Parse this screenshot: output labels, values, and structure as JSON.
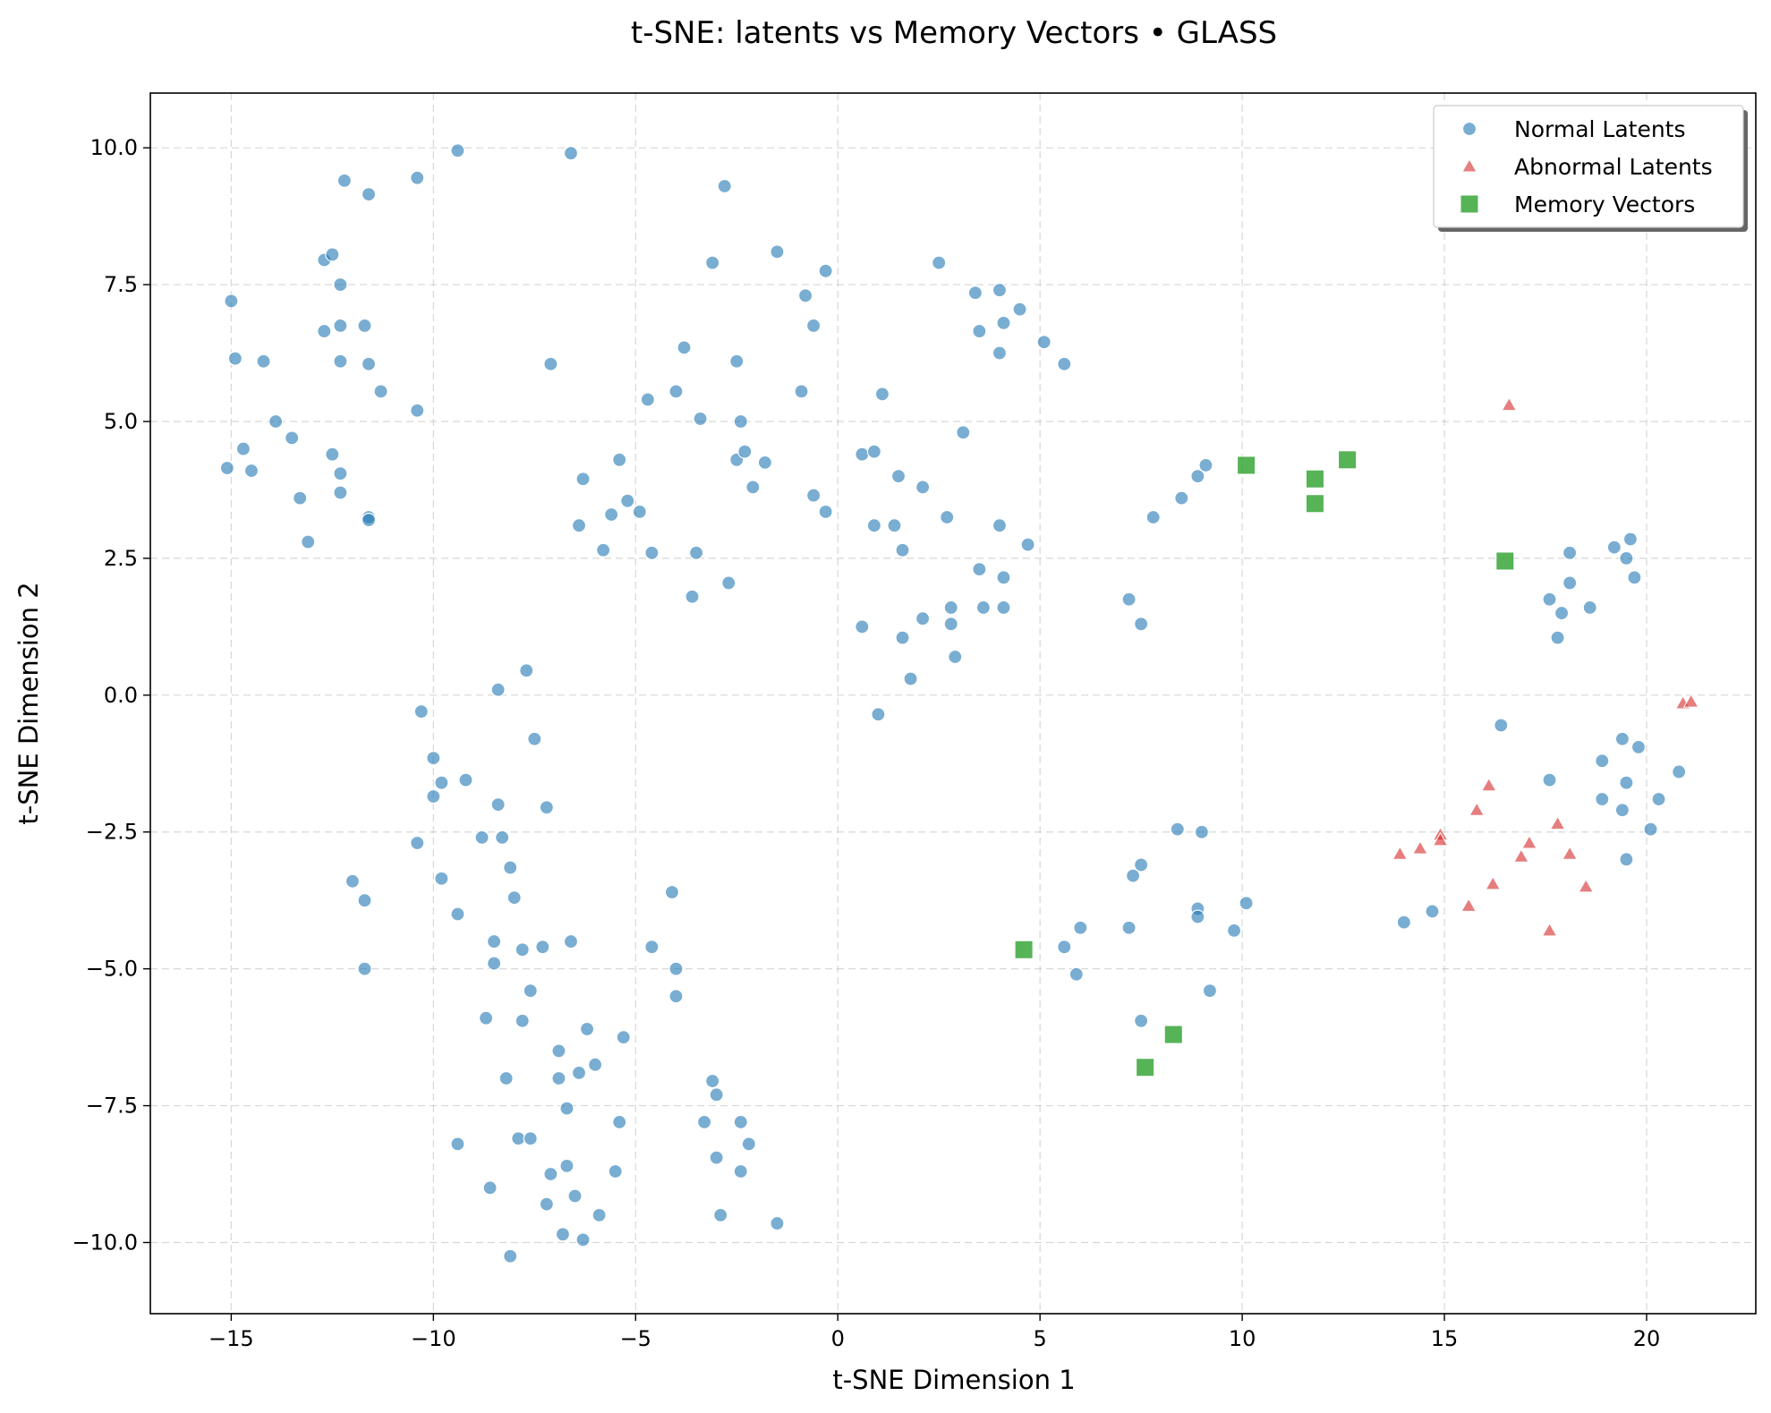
{
  "chart_data": {
    "type": "scatter",
    "title": "t-SNE: latents vs Memory Vectors • GLASS",
    "xlabel": "t-SNE Dimension 1",
    "ylabel": "t-SNE Dimension 2",
    "xlim": [
      -17,
      22.7
    ],
    "ylim": [
      -11.3,
      11
    ],
    "xticks": [
      -15,
      -10,
      -5,
      0,
      5,
      10,
      15,
      20
    ],
    "xtick_labels": [
      "−15",
      "−10",
      "−5",
      "0",
      "5",
      "10",
      "15",
      "20"
    ],
    "yticks": [
      10,
      7.5,
      5,
      2.5,
      0,
      -2.5,
      -5,
      -7.5,
      -10
    ],
    "ytick_labels": [
      "10.0",
      "7.5",
      "5.0",
      "2.5",
      "0.0",
      "−2.5",
      "−5.0",
      "−7.5",
      "−10.0"
    ],
    "grid": true,
    "legend_position": "top-right",
    "series": [
      {
        "name": "Normal Latents",
        "marker": "circle",
        "color": "#1f77b4",
        "points": [
          [
            -15.0,
            7.2
          ],
          [
            -14.9,
            6.15
          ],
          [
            -14.7,
            4.5
          ],
          [
            -15.1,
            4.15
          ],
          [
            -14.5,
            4.1
          ],
          [
            -14.2,
            6.1
          ],
          [
            -13.9,
            5.0
          ],
          [
            -13.5,
            4.7
          ],
          [
            -13.3,
            3.6
          ],
          [
            -13.1,
            2.8
          ],
          [
            -12.7,
            6.65
          ],
          [
            -12.7,
            7.95
          ],
          [
            -12.2,
            9.4
          ],
          [
            -12.5,
            8.05
          ],
          [
            -12.3,
            7.5
          ],
          [
            -12.3,
            6.75
          ],
          [
            -12.3,
            6.1
          ],
          [
            -12.5,
            4.4
          ],
          [
            -12.3,
            4.05
          ],
          [
            -12.3,
            3.7
          ],
          [
            -11.7,
            6.75
          ],
          [
            -11.6,
            6.05
          ],
          [
            -11.3,
            5.55
          ],
          [
            -11.6,
            9.15
          ],
          [
            -11.6,
            3.25
          ],
          [
            -11.6,
            3.2
          ],
          [
            -10.4,
            9.45
          ],
          [
            -10.4,
            5.2
          ],
          [
            -9.4,
            9.95
          ],
          [
            -6.6,
            9.9
          ],
          [
            -7.1,
            6.05
          ],
          [
            -2.8,
            9.3
          ],
          [
            -3.1,
            7.9
          ],
          [
            -3.8,
            6.35
          ],
          [
            -4.0,
            5.55
          ],
          [
            -4.7,
            5.4
          ],
          [
            -3.4,
            5.05
          ],
          [
            -2.5,
            6.1
          ],
          [
            -2.4,
            5.0
          ],
          [
            -2.5,
            4.3
          ],
          [
            -2.3,
            4.45
          ],
          [
            -1.8,
            4.25
          ],
          [
            -2.1,
            3.8
          ],
          [
            -5.4,
            4.3
          ],
          [
            -6.3,
            3.95
          ],
          [
            -5.2,
            3.55
          ],
          [
            -5.6,
            3.3
          ],
          [
            -4.9,
            3.35
          ],
          [
            -6.4,
            3.1
          ],
          [
            -5.8,
            2.65
          ],
          [
            -4.6,
            2.6
          ],
          [
            -3.5,
            2.6
          ],
          [
            -3.6,
            1.8
          ],
          [
            -2.7,
            2.05
          ],
          [
            -1.5,
            8.1
          ],
          [
            -0.3,
            7.75
          ],
          [
            -0.8,
            7.3
          ],
          [
            -0.6,
            6.75
          ],
          [
            -0.9,
            5.55
          ],
          [
            -0.6,
            3.65
          ],
          [
            -0.3,
            3.35
          ],
          [
            1.1,
            5.5
          ],
          [
            0.6,
            4.4
          ],
          [
            0.9,
            4.45
          ],
          [
            1.5,
            4.0
          ],
          [
            2.1,
            3.8
          ],
          [
            0.9,
            3.1
          ],
          [
            1.4,
            3.1
          ],
          [
            1.6,
            2.65
          ],
          [
            2.7,
            3.25
          ],
          [
            2.5,
            7.9
          ],
          [
            3.4,
            7.35
          ],
          [
            4.0,
            7.4
          ],
          [
            4.5,
            7.05
          ],
          [
            3.5,
            6.65
          ],
          [
            4.1,
            6.8
          ],
          [
            5.1,
            6.45
          ],
          [
            4.0,
            6.25
          ],
          [
            5.6,
            6.05
          ],
          [
            3.1,
            4.8
          ],
          [
            4.0,
            3.1
          ],
          [
            4.7,
            2.75
          ],
          [
            3.5,
            2.3
          ],
          [
            4.1,
            2.15
          ],
          [
            2.8,
            1.6
          ],
          [
            3.6,
            1.6
          ],
          [
            4.1,
            1.6
          ],
          [
            2.1,
            1.4
          ],
          [
            2.8,
            1.3
          ],
          [
            0.6,
            1.25
          ],
          [
            1.6,
            1.05
          ],
          [
            2.9,
            0.7
          ],
          [
            1.8,
            0.3
          ],
          [
            1.0,
            -0.35
          ],
          [
            7.2,
            1.75
          ],
          [
            7.5,
            1.3
          ],
          [
            7.8,
            3.25
          ],
          [
            8.5,
            3.6
          ],
          [
            8.9,
            4.0
          ],
          [
            9.1,
            4.2
          ],
          [
            -8.4,
            0.1
          ],
          [
            -7.7,
            0.45
          ],
          [
            -10.3,
            -0.3
          ],
          [
            -10.0,
            -1.15
          ],
          [
            -7.5,
            -0.8
          ],
          [
            -9.8,
            -1.6
          ],
          [
            -9.2,
            -1.55
          ],
          [
            -10.0,
            -1.85
          ],
          [
            -8.4,
            -2.0
          ],
          [
            -7.2,
            -2.05
          ],
          [
            -10.4,
            -2.7
          ],
          [
            -8.8,
            -2.6
          ],
          [
            -8.3,
            -2.6
          ],
          [
            -9.8,
            -3.35
          ],
          [
            -8.1,
            -3.15
          ],
          [
            -8.0,
            -3.7
          ],
          [
            -9.4,
            -4.0
          ],
          [
            -8.5,
            -4.5
          ],
          [
            -7.8,
            -4.65
          ],
          [
            -7.3,
            -4.6
          ],
          [
            -6.6,
            -4.5
          ],
          [
            -8.5,
            -4.9
          ],
          [
            -7.6,
            -5.4
          ],
          [
            -8.7,
            -5.9
          ],
          [
            -7.8,
            -5.95
          ],
          [
            -6.2,
            -6.1
          ],
          [
            -6.9,
            -6.5
          ],
          [
            -6.0,
            -6.75
          ],
          [
            -6.4,
            -6.9
          ],
          [
            -6.9,
            -7.0
          ],
          [
            -8.2,
            -7.0
          ],
          [
            -6.7,
            -7.55
          ],
          [
            -5.4,
            -7.8
          ],
          [
            -7.9,
            -8.1
          ],
          [
            -7.6,
            -8.1
          ],
          [
            -9.4,
            -8.2
          ],
          [
            -6.7,
            -8.6
          ],
          [
            -7.1,
            -8.75
          ],
          [
            -5.5,
            -8.7
          ],
          [
            -8.6,
            -9.0
          ],
          [
            -6.5,
            -9.15
          ],
          [
            -7.2,
            -9.3
          ],
          [
            -5.9,
            -9.5
          ],
          [
            -6.8,
            -9.85
          ],
          [
            -6.3,
            -9.95
          ],
          [
            -8.1,
            -10.25
          ],
          [
            -12.0,
            -3.4
          ],
          [
            -11.7,
            -3.75
          ],
          [
            -11.7,
            -5.0
          ],
          [
            -4.1,
            -3.6
          ],
          [
            -4.6,
            -4.6
          ],
          [
            -4.0,
            -5.0
          ],
          [
            -4.0,
            -5.5
          ],
          [
            -5.3,
            -6.25
          ],
          [
            -3.1,
            -7.05
          ],
          [
            -3.0,
            -7.3
          ],
          [
            -3.3,
            -7.8
          ],
          [
            -2.4,
            -7.8
          ],
          [
            -2.2,
            -8.2
          ],
          [
            -3.0,
            -8.45
          ],
          [
            -2.4,
            -8.7
          ],
          [
            -2.9,
            -9.5
          ],
          [
            -1.5,
            -9.65
          ],
          [
            8.4,
            -2.45
          ],
          [
            9.0,
            -2.5
          ],
          [
            7.5,
            -3.1
          ],
          [
            7.3,
            -3.3
          ],
          [
            8.9,
            -3.9
          ],
          [
            10.1,
            -3.8
          ],
          [
            8.9,
            -4.05
          ],
          [
            9.8,
            -4.3
          ],
          [
            7.2,
            -4.25
          ],
          [
            6.0,
            -4.25
          ],
          [
            5.6,
            -4.6
          ],
          [
            5.9,
            -5.1
          ],
          [
            9.2,
            -5.4
          ],
          [
            7.5,
            -5.95
          ],
          [
            14.0,
            -4.15
          ],
          [
            14.7,
            -3.95
          ],
          [
            16.4,
            -0.55
          ],
          [
            17.6,
            1.75
          ],
          [
            18.1,
            2.6
          ],
          [
            19.2,
            2.7
          ],
          [
            19.6,
            2.85
          ],
          [
            19.5,
            2.5
          ],
          [
            18.1,
            2.05
          ],
          [
            18.6,
            1.6
          ],
          [
            19.7,
            2.15
          ],
          [
            17.9,
            1.5
          ],
          [
            17.8,
            1.05
          ],
          [
            20.8,
            -1.4
          ],
          [
            19.8,
            -0.95
          ],
          [
            19.4,
            -0.8
          ],
          [
            18.9,
            -1.2
          ],
          [
            17.6,
            -1.55
          ],
          [
            19.5,
            -1.6
          ],
          [
            20.3,
            -1.9
          ],
          [
            18.9,
            -1.9
          ],
          [
            19.4,
            -2.1
          ],
          [
            20.1,
            -2.45
          ],
          [
            19.5,
            -3.0
          ]
        ]
      },
      {
        "name": "Abnormal Latents",
        "marker": "triangle",
        "color": "#d62728",
        "points": [
          [
            16.6,
            5.3
          ],
          [
            20.9,
            -0.15
          ],
          [
            21.1,
            -0.12
          ],
          [
            16.1,
            -1.65
          ],
          [
            15.8,
            -2.1
          ],
          [
            17.8,
            -2.35
          ],
          [
            14.9,
            -2.55
          ],
          [
            14.9,
            -2.65
          ],
          [
            14.4,
            -2.8
          ],
          [
            13.9,
            -2.9
          ],
          [
            17.1,
            -2.7
          ],
          [
            16.9,
            -2.95
          ],
          [
            18.1,
            -2.9
          ],
          [
            16.2,
            -3.45
          ],
          [
            18.5,
            -3.5
          ],
          [
            15.6,
            -3.85
          ],
          [
            17.6,
            -4.3
          ]
        ]
      },
      {
        "name": "Memory Vectors",
        "marker": "square",
        "color": "#2ca02c",
        "points": [
          [
            10.1,
            4.2
          ],
          [
            11.8,
            3.95
          ],
          [
            12.6,
            4.3
          ],
          [
            11.8,
            3.5
          ],
          [
            16.5,
            2.45
          ],
          [
            4.6,
            -4.65
          ],
          [
            8.3,
            -6.2
          ],
          [
            7.6,
            -6.8
          ]
        ]
      }
    ]
  }
}
